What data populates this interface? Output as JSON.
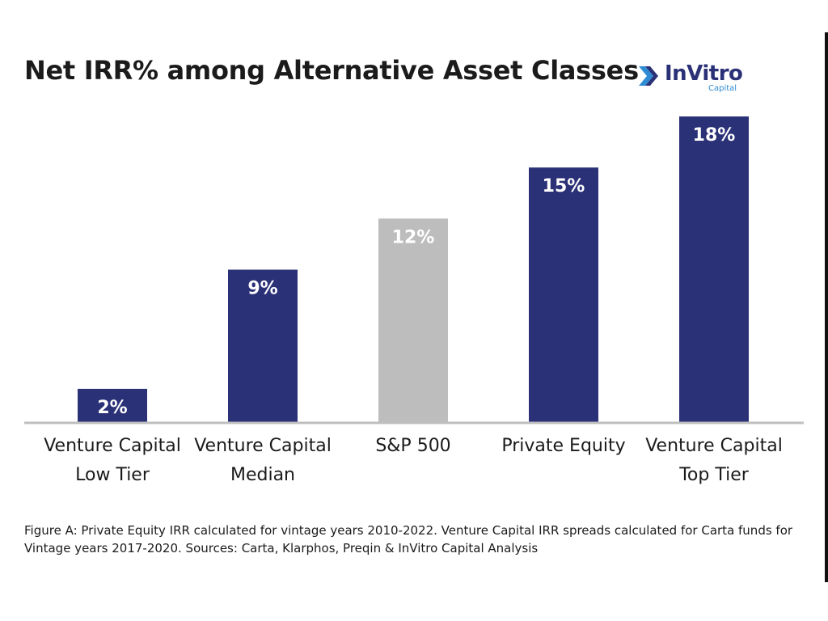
{
  "title": "Net IRR% among Alternative Asset Classes",
  "logo": {
    "name": "InVitro",
    "sub": "Capital"
  },
  "caption": {
    "line1": "Figure A: Private Equity IRR calculated for vintage years 2010-2022. Venture Capital IRR spreads calculated for Carta funds for",
    "line2": "Vintage years 2017-2020. Sources: Carta, Klarphos, Preqin & InVitro Capital Analysis"
  },
  "colors": {
    "primary": "#2b3177",
    "benchmark": "#bdbdbd",
    "axis": "#bfbfbf",
    "brand_accent": "#2f8bd4"
  },
  "chart_data": {
    "type": "bar",
    "title": "Net IRR% among Alternative Asset Classes",
    "categories": [
      [
        "Venture Capital",
        "Low Tier"
      ],
      [
        "Venture Capital",
        "Median"
      ],
      [
        "S&P 500"
      ],
      [
        "Private Equity"
      ],
      [
        "Venture Capital",
        "Top Tier"
      ]
    ],
    "values": [
      2,
      9,
      12,
      15,
      18
    ],
    "data_labels": [
      "2%",
      "9%",
      "12%",
      "15%",
      "18%"
    ],
    "bar_colors": [
      "#2b3177",
      "#2b3177",
      "#bdbdbd",
      "#2b3177",
      "#2b3177"
    ],
    "ylim": [
      0,
      18
    ],
    "xlabel": "",
    "ylabel": "",
    "grid": false,
    "legend": "none"
  }
}
